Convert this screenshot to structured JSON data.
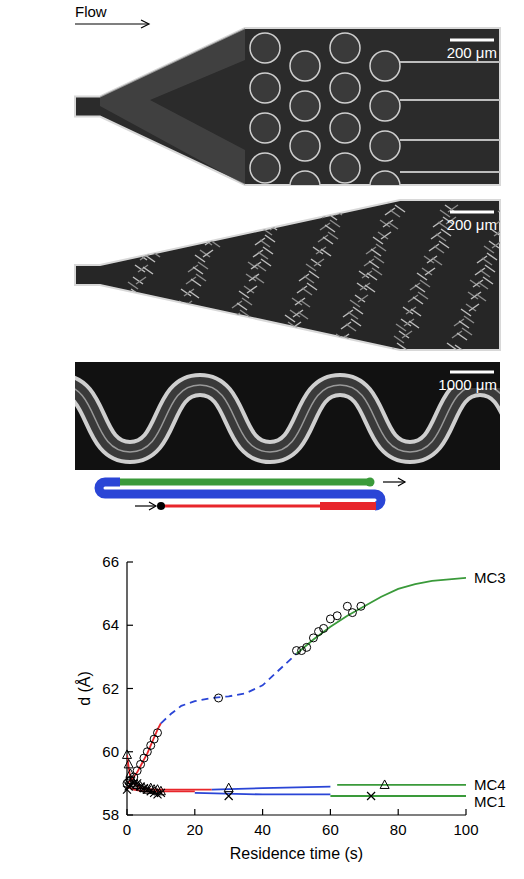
{
  "micrographs": [
    {
      "flow_label": "Flow",
      "scale_bar": "200 μm"
    },
    {
      "scale_bar": "200 μm"
    },
    {
      "scale_bar": "1000 μm"
    }
  ],
  "chart_data": {
    "type": "line",
    "x_label": "Residence time (s)",
    "y_label": "d (Å)",
    "xlim": [
      0,
      100
    ],
    "xticks": [
      0,
      20,
      40,
      60,
      80,
      100
    ],
    "ylim": [
      58,
      66
    ],
    "yticks": [
      58,
      60,
      62,
      64,
      66
    ],
    "series": [
      {
        "type": "line",
        "color": "#e8262b",
        "line_style": "solid",
        "x": [
          0,
          1,
          2,
          3,
          4,
          5,
          6,
          7,
          8,
          9,
          10
        ],
        "values": [
          59.0,
          59.08,
          59.2,
          59.35,
          59.55,
          59.75,
          59.95,
          60.2,
          60.45,
          60.7,
          60.9
        ]
      },
      {
        "type": "line",
        "color": "#2a45d6",
        "line_style": "dashed",
        "x": [
          10,
          13,
          16,
          20,
          25,
          30,
          35,
          40,
          45,
          50
        ],
        "values": [
          60.9,
          61.2,
          61.45,
          61.6,
          61.7,
          61.75,
          61.85,
          62.1,
          62.6,
          63.1
        ]
      },
      {
        "name": "MC3",
        "type": "line",
        "color": "#3a9a3a",
        "line_style": "solid",
        "x": [
          50,
          55,
          60,
          65,
          70,
          75,
          80,
          85,
          90,
          95,
          100
        ],
        "values": [
          63.1,
          63.55,
          63.95,
          64.3,
          64.6,
          64.9,
          65.15,
          65.3,
          65.4,
          65.45,
          65.5
        ]
      },
      {
        "type": "line",
        "color": "#e8262b",
        "line_style": "solid",
        "x": [
          0,
          0.5,
          1,
          2,
          4,
          8,
          15,
          25
        ],
        "values": [
          59.9,
          59.5,
          59.2,
          59.0,
          58.85,
          58.8,
          58.8,
          58.8
        ]
      },
      {
        "type": "line",
        "color": "#2a45d6",
        "line_style": "solid",
        "x": [
          25,
          40,
          60
        ],
        "values": [
          58.8,
          58.85,
          58.9
        ]
      },
      {
        "name": "MC4",
        "type": "line",
        "color": "#3a9a3a",
        "line_style": "solid",
        "x": [
          62,
          80,
          100
        ],
        "values": [
          58.95,
          58.95,
          58.95
        ]
      },
      {
        "type": "line",
        "color": "#e8262b",
        "line_style": "solid",
        "x": [
          0,
          1,
          2,
          5,
          10,
          20
        ],
        "values": [
          58.9,
          58.85,
          58.8,
          58.75,
          58.75,
          58.75
        ]
      },
      {
        "type": "line",
        "color": "#2a45d6",
        "line_style": "solid",
        "x": [
          20,
          40,
          60
        ],
        "values": [
          58.7,
          58.65,
          58.65
        ]
      },
      {
        "name": "MC1",
        "type": "line",
        "color": "#3a9a3a",
        "line_style": "solid",
        "x": [
          60,
          80,
          100
        ],
        "values": [
          58.6,
          58.6,
          58.6
        ]
      },
      {
        "type": "scatter",
        "marker": "circle",
        "color": "#000000",
        "x": [
          0,
          0.5,
          1,
          2,
          3,
          4,
          5,
          6,
          7,
          8,
          9,
          27,
          50,
          51.5,
          53,
          55,
          56.5,
          58,
          60,
          62,
          65,
          66.5,
          69
        ],
        "values": [
          59.0,
          59.05,
          59.1,
          59.2,
          59.4,
          59.6,
          59.8,
          60.0,
          60.2,
          60.4,
          60.6,
          61.7,
          63.2,
          63.2,
          63.3,
          63.6,
          63.8,
          63.9,
          64.2,
          64.3,
          64.6,
          64.4,
          64.6
        ]
      },
      {
        "type": "scatter",
        "marker": "triangle",
        "color": "#000000",
        "x": [
          0,
          0.5,
          1,
          1.5,
          2,
          3,
          4,
          5,
          6,
          7,
          8,
          9,
          10,
          30,
          76
        ],
        "values": [
          59.9,
          59.6,
          59.3,
          59.1,
          59.0,
          58.95,
          58.9,
          58.85,
          58.8,
          58.85,
          58.8,
          58.8,
          58.75,
          58.85,
          58.95
        ]
      },
      {
        "type": "scatter",
        "marker": "x",
        "color": "#000000",
        "x": [
          0,
          0.5,
          1,
          2,
          3,
          4,
          5,
          6,
          7,
          8,
          9,
          10,
          30,
          72
        ],
        "values": [
          58.8,
          58.9,
          58.95,
          59.0,
          59.0,
          58.9,
          58.85,
          58.8,
          58.75,
          58.7,
          58.65,
          58.7,
          58.6,
          58.6
        ]
      }
    ]
  }
}
